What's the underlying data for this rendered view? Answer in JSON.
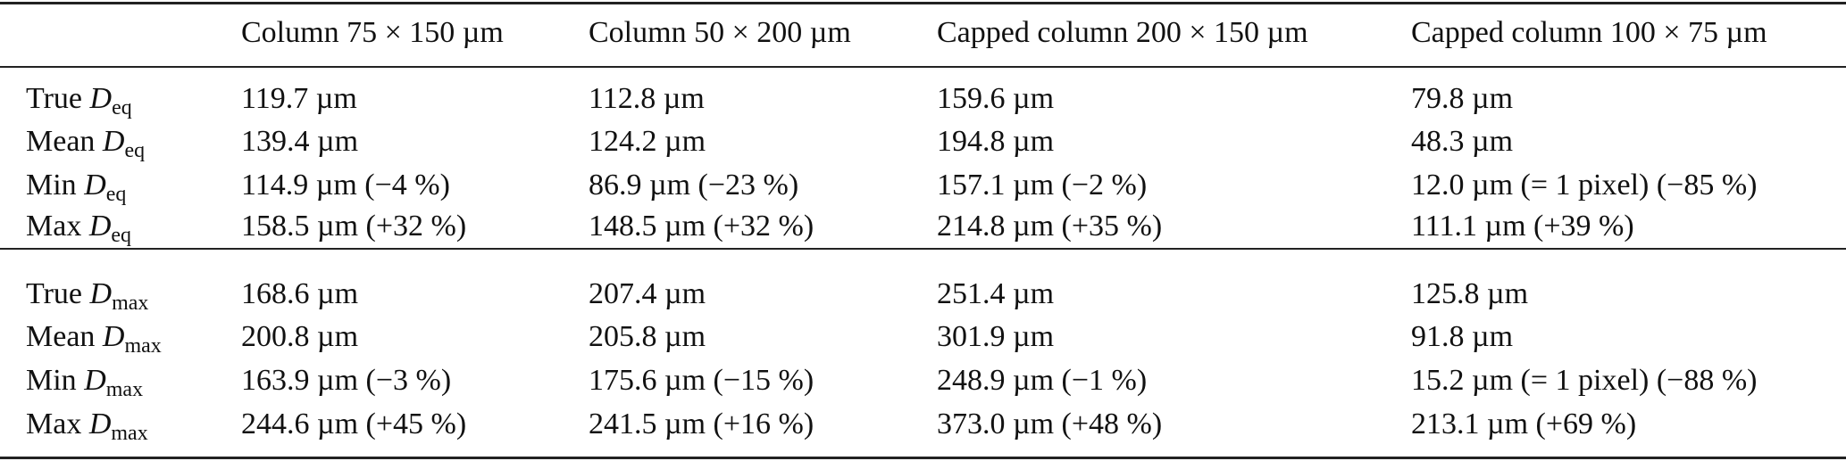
{
  "table": {
    "columns": [
      "Column 75 × 150 µm",
      "Column 50 × 200 µm",
      "Capped column 200 × 150 µm",
      "Capped column 100 × 75 µm"
    ],
    "groups": [
      {
        "rows": [
          {
            "label": "True",
            "symbol": "D",
            "subscript": "eq",
            "cells": [
              "119.7 µm",
              "112.8 µm",
              "159.6 µm",
              "79.8 µm"
            ]
          },
          {
            "label": "Mean",
            "symbol": "D",
            "subscript": "eq",
            "cells": [
              "139.4 µm",
              "124.2 µm",
              "194.8 µm",
              "48.3 µm"
            ]
          },
          {
            "label": "Min",
            "symbol": "D",
            "subscript": "eq",
            "cells": [
              "114.9 µm (−4 %)",
              "86.9 µm (−23 %)",
              "157.1 µm (−2 %)",
              "12.0 µm (= 1 pixel) (−85 %)"
            ]
          },
          {
            "label": "Max",
            "symbol": "D",
            "subscript": "eq",
            "cells": [
              "158.5 µm (+32 %)",
              "148.5 µm (+32 %)",
              "214.8 µm (+35 %)",
              "111.1 µm (+39 %)"
            ]
          }
        ]
      },
      {
        "rows": [
          {
            "label": "True",
            "symbol": "D",
            "subscript": "max",
            "cells": [
              "168.6 µm",
              "207.4 µm",
              "251.4 µm",
              "125.8 µm"
            ]
          },
          {
            "label": "Mean",
            "symbol": "D",
            "subscript": "max",
            "cells": [
              "200.8 µm",
              "205.8 µm",
              "301.9 µm",
              "91.8 µm"
            ]
          },
          {
            "label": "Min",
            "symbol": "D",
            "subscript": "max",
            "cells": [
              "163.9 µm (−3 %)",
              "175.6 µm (−15 %)",
              "248.9 µm (−1 %)",
              "15.2 µm (= 1 pixel) (−88 %)"
            ]
          },
          {
            "label": "Max",
            "symbol": "D",
            "subscript": "max",
            "cells": [
              "244.6 µm (+45 %)",
              "241.5 µm (+16 %)",
              "373.0 µm (+48 %)",
              "213.1 µm (+69 %)"
            ]
          }
        ]
      }
    ]
  }
}
